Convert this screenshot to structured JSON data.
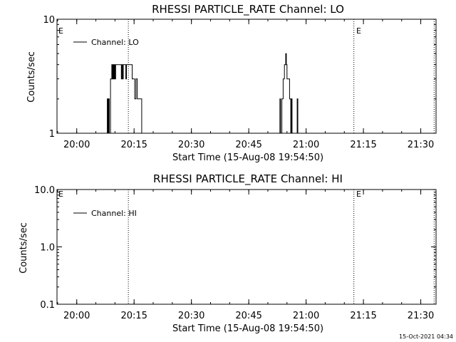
{
  "chart_data": [
    {
      "type": "line",
      "title": "RHESSI PARTICLE_RATE Channel: LO",
      "xlabel": "Start Time (15-Aug-08 19:54:50)",
      "ylabel": "Counts/sec",
      "y_scale": "log",
      "ylim": [
        1,
        10
      ],
      "y_ticks": [
        {
          "value": 1,
          "label": "1"
        },
        {
          "value": 10,
          "label": "10"
        }
      ],
      "xlim": [
        "19:54:50",
        "21:34:00"
      ],
      "x_ticks": [
        "20:00",
        "20:15",
        "20:30",
        "20:45",
        "21:00",
        "21:15",
        "21:30"
      ],
      "grid": false,
      "legend": {
        "placement": "top-left",
        "entries": [
          "Channel: LO"
        ]
      },
      "series": [
        {
          "name": "Channel: LO",
          "points": [
            [
              "20:07:50",
              1
            ],
            [
              "20:08:00",
              2
            ],
            [
              "20:08:10",
              1
            ],
            [
              "20:08:20",
              2
            ],
            [
              "20:08:30",
              1
            ],
            [
              "20:08:50",
              3
            ],
            [
              "20:09:10",
              4
            ],
            [
              "20:09:20",
              3
            ],
            [
              "20:09:30",
              4
            ],
            [
              "20:09:40",
              3
            ],
            [
              "20:09:50",
              4
            ],
            [
              "20:10:00",
              3
            ],
            [
              "20:10:10",
              4
            ],
            [
              "20:10:30",
              4
            ],
            [
              "20:10:50",
              4
            ],
            [
              "20:11:10",
              4
            ],
            [
              "20:11:30",
              4
            ],
            [
              "20:11:40",
              3
            ],
            [
              "20:11:50",
              4
            ],
            [
              "20:12:00",
              3
            ],
            [
              "20:12:10",
              4
            ],
            [
              "20:12:20",
              4
            ],
            [
              "20:12:40",
              4
            ],
            [
              "20:12:50",
              3
            ],
            [
              "20:13:00",
              4
            ],
            [
              "20:13:10",
              4
            ],
            [
              "20:13:40",
              4
            ],
            [
              "20:14:00",
              4
            ],
            [
              "20:14:20",
              4
            ],
            [
              "20:14:30",
              3
            ],
            [
              "20:14:50",
              3
            ],
            [
              "20:15:10",
              2
            ],
            [
              "20:15:30",
              3
            ],
            [
              "20:15:50",
              2
            ],
            [
              "20:16:00",
              2
            ],
            [
              "20:16:20",
              2
            ],
            [
              "20:16:40",
              2
            ],
            [
              "20:17:00",
              1
            ],
            [
              "20:53:00",
              1
            ],
            [
              "20:53:10",
              2
            ],
            [
              "20:53:20",
              1
            ],
            [
              "20:53:40",
              2
            ],
            [
              "20:54:00",
              3
            ],
            [
              "20:54:20",
              4
            ],
            [
              "20:54:40",
              5
            ],
            [
              "20:54:50",
              4
            ],
            [
              "20:55:00",
              3
            ],
            [
              "20:55:20",
              3
            ],
            [
              "20:55:40",
              2
            ],
            [
              "20:56:00",
              1
            ],
            [
              "20:56:10",
              2
            ],
            [
              "20:56:20",
              1
            ],
            [
              "20:57:30",
              1
            ],
            [
              "20:57:40",
              2
            ],
            [
              "20:57:50",
              1
            ]
          ]
        }
      ],
      "annotations": [
        {
          "text": "E",
          "at": "start"
        },
        {
          "text": "E",
          "at": "21:12:30"
        }
      ],
      "marker_lines": [
        "20:13:30",
        "21:12:30",
        "21:33:30"
      ]
    },
    {
      "type": "line",
      "title": "RHESSI PARTICLE_RATE Channel: HI",
      "xlabel": "Start Time (15-Aug-08 19:54:50)",
      "ylabel": "Counts/sec",
      "y_scale": "log",
      "ylim": [
        0.1,
        10
      ],
      "y_ticks": [
        {
          "value": 0.1,
          "label": "0.1"
        },
        {
          "value": 1,
          "label": "1.0"
        },
        {
          "value": 10,
          "label": "10.0"
        }
      ],
      "xlim": [
        "19:54:50",
        "21:34:00"
      ],
      "x_ticks": [
        "20:00",
        "20:15",
        "20:30",
        "20:45",
        "21:00",
        "21:15",
        "21:30"
      ],
      "grid": false,
      "legend": {
        "placement": "top-left",
        "entries": [
          "Channel: HI"
        ]
      },
      "series": [
        {
          "name": "Channel: HI",
          "points": []
        }
      ],
      "annotations": [
        {
          "text": "E",
          "at": "start"
        },
        {
          "text": "E",
          "at": "21:12:30"
        }
      ],
      "marker_lines": [
        "20:13:30",
        "21:12:30",
        "21:33:30"
      ]
    }
  ],
  "timestamp": "15-Oct-2021 04:34"
}
